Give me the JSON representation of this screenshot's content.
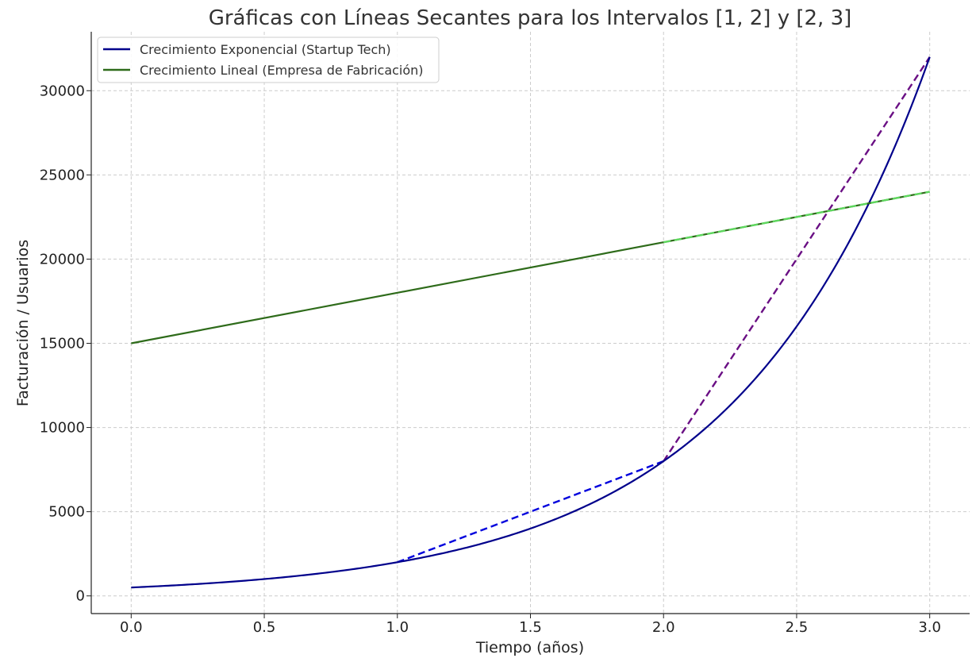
{
  "chart_data": {
    "type": "line",
    "title": "Gráficas con Líneas Secantes para los Intervalos [1, 2] y [2, 3]",
    "xlabel": "Tiempo (años)",
    "ylabel": "Facturación / Usuarios",
    "xlim": [
      -0.15,
      3.15
    ],
    "ylim": [
      -1050,
      33500
    ],
    "xticks": [
      0.0,
      0.5,
      1.0,
      1.5,
      2.0,
      2.5,
      3.0
    ],
    "xtick_labels": [
      "0.0",
      "0.5",
      "1.0",
      "1.5",
      "2.0",
      "2.5",
      "3.0"
    ],
    "yticks": [
      0,
      5000,
      10000,
      15000,
      20000,
      25000,
      30000
    ],
    "ytick_labels": [
      "0",
      "5000",
      "10000",
      "15000",
      "20000",
      "25000",
      "30000"
    ],
    "grid": true,
    "legend_position": "top-left",
    "series": [
      {
        "name": "Crecimiento Exponencial (Startup Tech)",
        "color": "#00008b",
        "style": "solid",
        "function": "500 * 4^x",
        "x": [
          0.0,
          0.25,
          0.5,
          0.75,
          1.0,
          1.25,
          1.5,
          1.75,
          2.0,
          2.25,
          2.5,
          2.75,
          3.0
        ],
        "values": [
          500,
          707,
          1000,
          1414,
          2000,
          2828,
          4000,
          5657,
          8000,
          11314,
          16000,
          22627,
          32000
        ]
      },
      {
        "name": "Crecimiento Lineal (Empresa de Fabricación)",
        "color": "#2e6b1a",
        "style": "solid",
        "x": [
          0.0,
          1.0,
          2.0,
          3.0
        ],
        "values": [
          15000,
          18000,
          21000,
          24000
        ]
      }
    ],
    "secants": [
      {
        "color": "#0000dd",
        "style": "dashed",
        "x": [
          1.0,
          2.0
        ],
        "values": [
          2000,
          8000
        ]
      },
      {
        "color": "#6a0f84",
        "style": "dashed",
        "x": [
          2.0,
          3.0
        ],
        "values": [
          8000,
          32000
        ]
      },
      {
        "color": "#5fd85f",
        "style": "dashed",
        "x": [
          2.0,
          3.0
        ],
        "values": [
          21000,
          24000
        ]
      }
    ]
  }
}
